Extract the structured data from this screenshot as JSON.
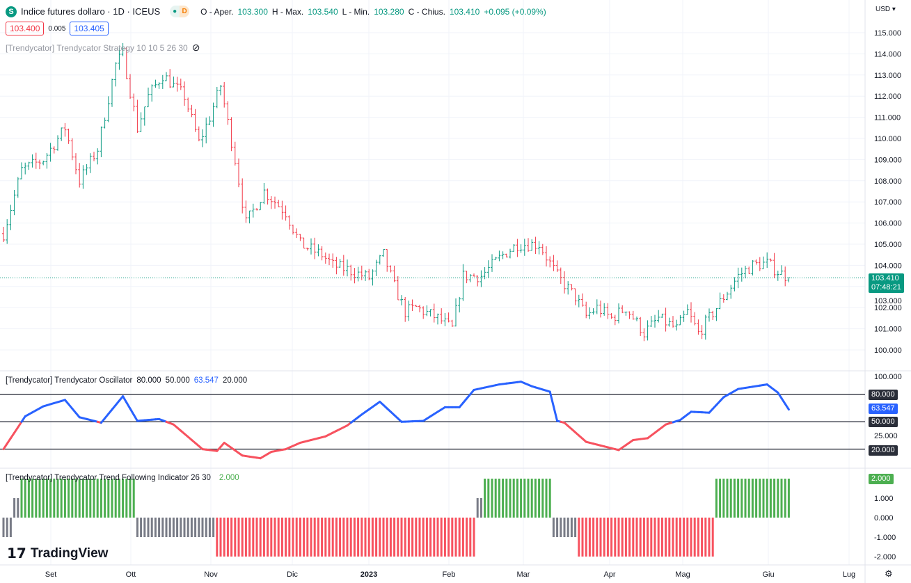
{
  "header": {
    "symbol_badge": "S",
    "title": "Indice futures dollaro · 1D · ICEUS",
    "pill_dot": "●",
    "pill_interval": "D",
    "ohlc": {
      "o_label": "O - Aper.",
      "o": "103.300",
      "h_label": "H - Max.",
      "h": "103.540",
      "l_label": "L - Min.",
      "l": "103.280",
      "c_label": "C - Chius.",
      "c": "103.410",
      "change": "+0.095 (+0.09%)"
    },
    "bid": "103.400",
    "spread": "0.005",
    "ask": "103.405",
    "strategy_label": "[Trendycator] Trendycator Strategy 10 10 5 26 30"
  },
  "currency": "USD ▾",
  "price_axis": [
    "115.000",
    "114.000",
    "113.000",
    "112.000",
    "111.000",
    "110.000",
    "109.000",
    "108.000",
    "107.000",
    "106.000",
    "105.000",
    "104.000",
    "103.000",
    "102.000",
    "101.000",
    "100.000"
  ],
  "last_price": "103.410",
  "countdown": "07:48:21",
  "oscillator": {
    "label": "[Trendycator] Trendycator Oscillator",
    "params": [
      "80.000",
      "50.000"
    ],
    "value": "63.547",
    "param3": "20.000",
    "axis": [
      "100.000",
      "25.000"
    ],
    "levels": [
      "80.000",
      "50.000",
      "20.000"
    ]
  },
  "trend": {
    "label": "[Trendycator] Trendycator Trend Following Indicator 26 30",
    "value": "2.000",
    "axis": [
      "1.000",
      "0.000",
      "-1.000",
      "-2.000"
    ]
  },
  "time_axis": [
    "Set",
    "Ott",
    "Nov",
    "Dic",
    "2023",
    "Feb",
    "Mar",
    "Apr",
    "Mag",
    "Giu",
    "Lug"
  ],
  "logo_text": "TradingView",
  "colors": {
    "up": "#089981",
    "down": "#f23645",
    "blue": "#2962ff",
    "green": "#4caf50",
    "gray": "#787b86"
  },
  "chart_data": {
    "type": "candlestick",
    "price_path": [
      [
        0,
        105.5
      ],
      [
        5,
        108.5
      ],
      [
        11,
        109
      ],
      [
        17,
        110.5
      ],
      [
        21,
        108
      ],
      [
        26,
        109.5
      ],
      [
        31,
        113.5
      ],
      [
        33,
        114
      ],
      [
        37,
        110.5
      ],
      [
        40,
        112
      ],
      [
        44,
        113
      ],
      [
        50,
        112
      ],
      [
        54,
        109.8
      ],
      [
        57,
        111
      ],
      [
        60,
        112.5
      ],
      [
        64,
        109
      ],
      [
        65,
        108
      ],
      [
        67,
        106
      ],
      [
        72,
        107.5
      ],
      [
        78,
        106.5
      ],
      [
        82,
        105
      ],
      [
        88,
        104.5
      ],
      [
        91,
        104
      ],
      [
        95,
        103.8
      ],
      [
        101,
        103.4
      ],
      [
        105,
        104.5
      ],
      [
        108,
        103
      ],
      [
        111,
        101.8
      ],
      [
        114,
        102
      ],
      [
        120,
        101.5
      ],
      [
        124,
        101
      ],
      [
        127,
        103.5
      ],
      [
        132,
        103.5
      ],
      [
        138,
        104.5
      ],
      [
        142,
        105
      ],
      [
        148,
        105
      ],
      [
        153,
        103.5
      ],
      [
        158,
        102.5
      ],
      [
        161,
        101.6
      ],
      [
        164,
        102
      ],
      [
        168,
        101.5
      ],
      [
        172,
        102
      ],
      [
        177,
        100.8
      ],
      [
        181,
        101.5
      ],
      [
        186,
        101
      ],
      [
        189,
        101.8
      ],
      [
        192,
        100.8
      ],
      [
        195,
        101.5
      ],
      [
        199,
        102.5
      ],
      [
        203,
        103.5
      ],
      [
        207,
        104
      ],
      [
        211,
        104.1
      ],
      [
        214,
        103.7
      ],
      [
        217,
        103.41
      ]
    ],
    "oscillator": [
      [
        0,
        20
      ],
      [
        6,
        56
      ],
      [
        11,
        67
      ],
      [
        17,
        74
      ],
      [
        21,
        55
      ],
      [
        27,
        49
      ],
      [
        33,
        78
      ],
      [
        37,
        51
      ],
      [
        43,
        53
      ],
      [
        47,
        47
      ],
      [
        55,
        20
      ],
      [
        59,
        18
      ],
      [
        61,
        27
      ],
      [
        66,
        13
      ],
      [
        71,
        10
      ],
      [
        74,
        17
      ],
      [
        78,
        20
      ],
      [
        82,
        27
      ],
      [
        89,
        34
      ],
      [
        95,
        46
      ],
      [
        99,
        58
      ],
      [
        104,
        72
      ],
      [
        110,
        50
      ],
      [
        116,
        51
      ],
      [
        122,
        66
      ],
      [
        126,
        66
      ],
      [
        130,
        85
      ],
      [
        137,
        91
      ],
      [
        143,
        94
      ],
      [
        146,
        89
      ],
      [
        151,
        83
      ],
      [
        153,
        51
      ],
      [
        155,
        49
      ],
      [
        161,
        28
      ],
      [
        170,
        19
      ],
      [
        174,
        30
      ],
      [
        178,
        32
      ],
      [
        183,
        47
      ],
      [
        187,
        52
      ],
      [
        190,
        61
      ],
      [
        195,
        60
      ],
      [
        199,
        77
      ],
      [
        203,
        86
      ],
      [
        211,
        91
      ],
      [
        214,
        82
      ],
      [
        217,
        63.5
      ]
    ],
    "trend_segments": [
      [
        0,
        3,
        -1
      ],
      [
        3,
        5,
        1
      ],
      [
        5,
        37,
        2
      ],
      [
        37,
        59,
        -1
      ],
      [
        59,
        131,
        -2
      ],
      [
        131,
        133,
        1
      ],
      [
        133,
        152,
        2
      ],
      [
        152,
        159,
        -1
      ],
      [
        159,
        197,
        -2
      ],
      [
        197,
        218,
        2
      ]
    ],
    "osc_levels": [
      80,
      50,
      20
    ],
    "price_range": [
      99.5,
      115.8
    ]
  }
}
